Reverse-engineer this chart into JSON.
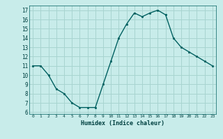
{
  "x": [
    0,
    1,
    2,
    3,
    4,
    5,
    6,
    7,
    8,
    9,
    10,
    11,
    12,
    13,
    14,
    15,
    16,
    17,
    18,
    19,
    20,
    21,
    22,
    23
  ],
  "y": [
    11,
    11,
    10,
    8.5,
    8,
    7,
    6.5,
    6.5,
    6.5,
    9,
    11.5,
    14,
    15.5,
    16.7,
    16.3,
    16.7,
    17,
    16.5,
    14,
    13,
    12.5,
    12,
    11.5,
    11
  ],
  "line_color": "#006060",
  "marker_color": "#006060",
  "bg_color": "#c8ecea",
  "grid_color": "#a8d4d0",
  "xlabel": "Humidex (Indice chaleur)",
  "ylim": [
    5.8,
    17.5
  ],
  "xlim": [
    -0.5,
    23.5
  ],
  "yticks": [
    6,
    7,
    8,
    9,
    10,
    11,
    12,
    13,
    14,
    15,
    16,
    17
  ],
  "xticks": [
    0,
    1,
    2,
    3,
    4,
    5,
    6,
    7,
    8,
    9,
    10,
    11,
    12,
    13,
    14,
    15,
    16,
    17,
    18,
    19,
    20,
    21,
    22,
    23
  ],
  "xtick_labels": [
    "0",
    "1",
    "2",
    "3",
    "4",
    "5",
    "6",
    "7",
    "8",
    "9",
    "10",
    "11",
    "12",
    "13",
    "14",
    "15",
    "16",
    "17",
    "18",
    "19",
    "20",
    "21",
    "22",
    "23"
  ]
}
